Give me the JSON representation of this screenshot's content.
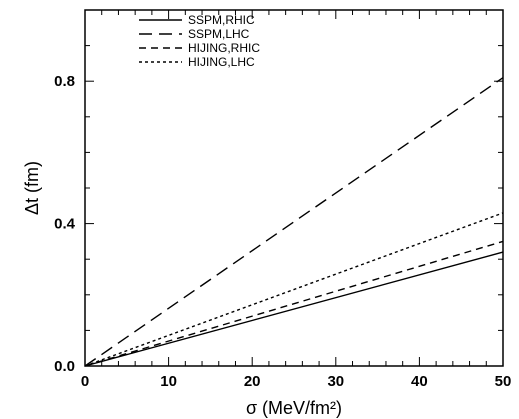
{
  "chart_data": {
    "type": "line",
    "title": "",
    "xlabel": "σ (MeV/fm²)",
    "ylabel": "Δt (fm)",
    "xlim": [
      0,
      50
    ],
    "ylim": [
      0,
      1.0
    ],
    "x_ticks": [
      0,
      10,
      20,
      30,
      40,
      50
    ],
    "x_tick_labels": [
      "0",
      "10",
      "20",
      "30",
      "40",
      "50"
    ],
    "y_ticks": [
      0.0,
      0.4,
      0.8
    ],
    "y_tick_labels": [
      "0.0",
      "0.4",
      "0.8"
    ],
    "grid": false,
    "legend_position": "top-left",
    "series": [
      {
        "name": "SSPM,RHIC",
        "dash": "solid",
        "x": [
          0,
          50
        ],
        "y": [
          0,
          0.32
        ]
      },
      {
        "name": "SSPM,LHC",
        "dash": "long-dash",
        "x": [
          0,
          50
        ],
        "y": [
          0,
          0.81
        ]
      },
      {
        "name": "HIJING,RHIC",
        "dash": "dash",
        "x": [
          0,
          50
        ],
        "y": [
          0,
          0.35
        ]
      },
      {
        "name": "HIJING,LHC",
        "dash": "dot",
        "x": [
          0,
          50
        ],
        "y": [
          0,
          0.43
        ]
      }
    ]
  }
}
